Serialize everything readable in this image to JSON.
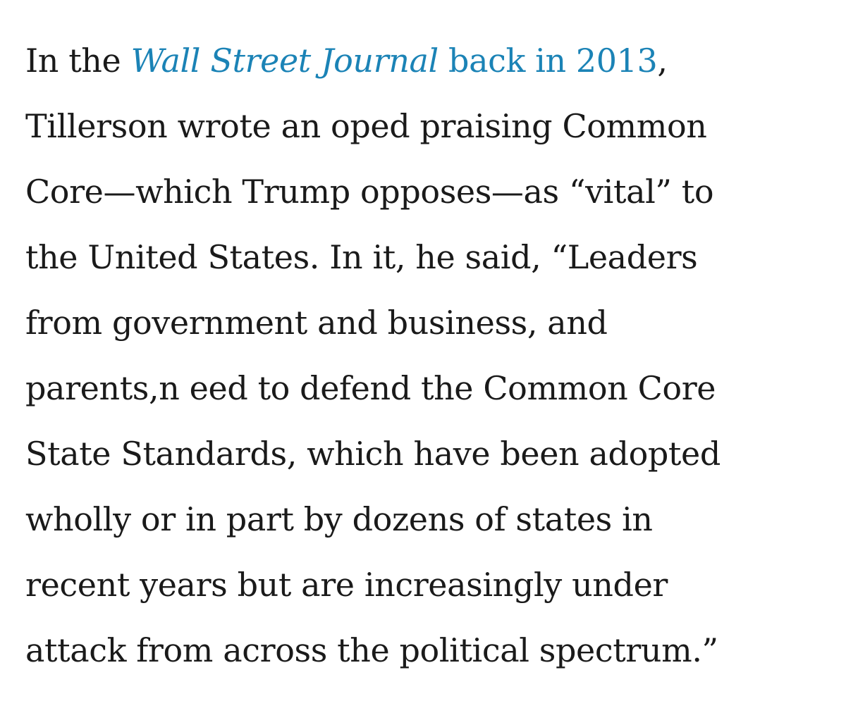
{
  "article": {
    "paragraph": {
      "intro": "In the ",
      "link_publication": "Wall Street Journal",
      "link_rest": " back in 2013",
      "after_link": ",",
      "lines": [
        "Tillerson wrote an oped praising Common",
        "Core—which Trump opposes—as “vital” to",
        "the United States. In it, he said, “Leaders",
        "from government and business, and",
        "parents,n eed to defend the Common Core",
        "State Standards, which have been adopted",
        "wholly or in part by dozens of states in",
        "recent years but are increasingly under",
        "attack from across the political spectrum.”"
      ]
    },
    "colors": {
      "text": "#1a1a1a",
      "link": "#1b83b6",
      "background": "#ffffff"
    }
  }
}
